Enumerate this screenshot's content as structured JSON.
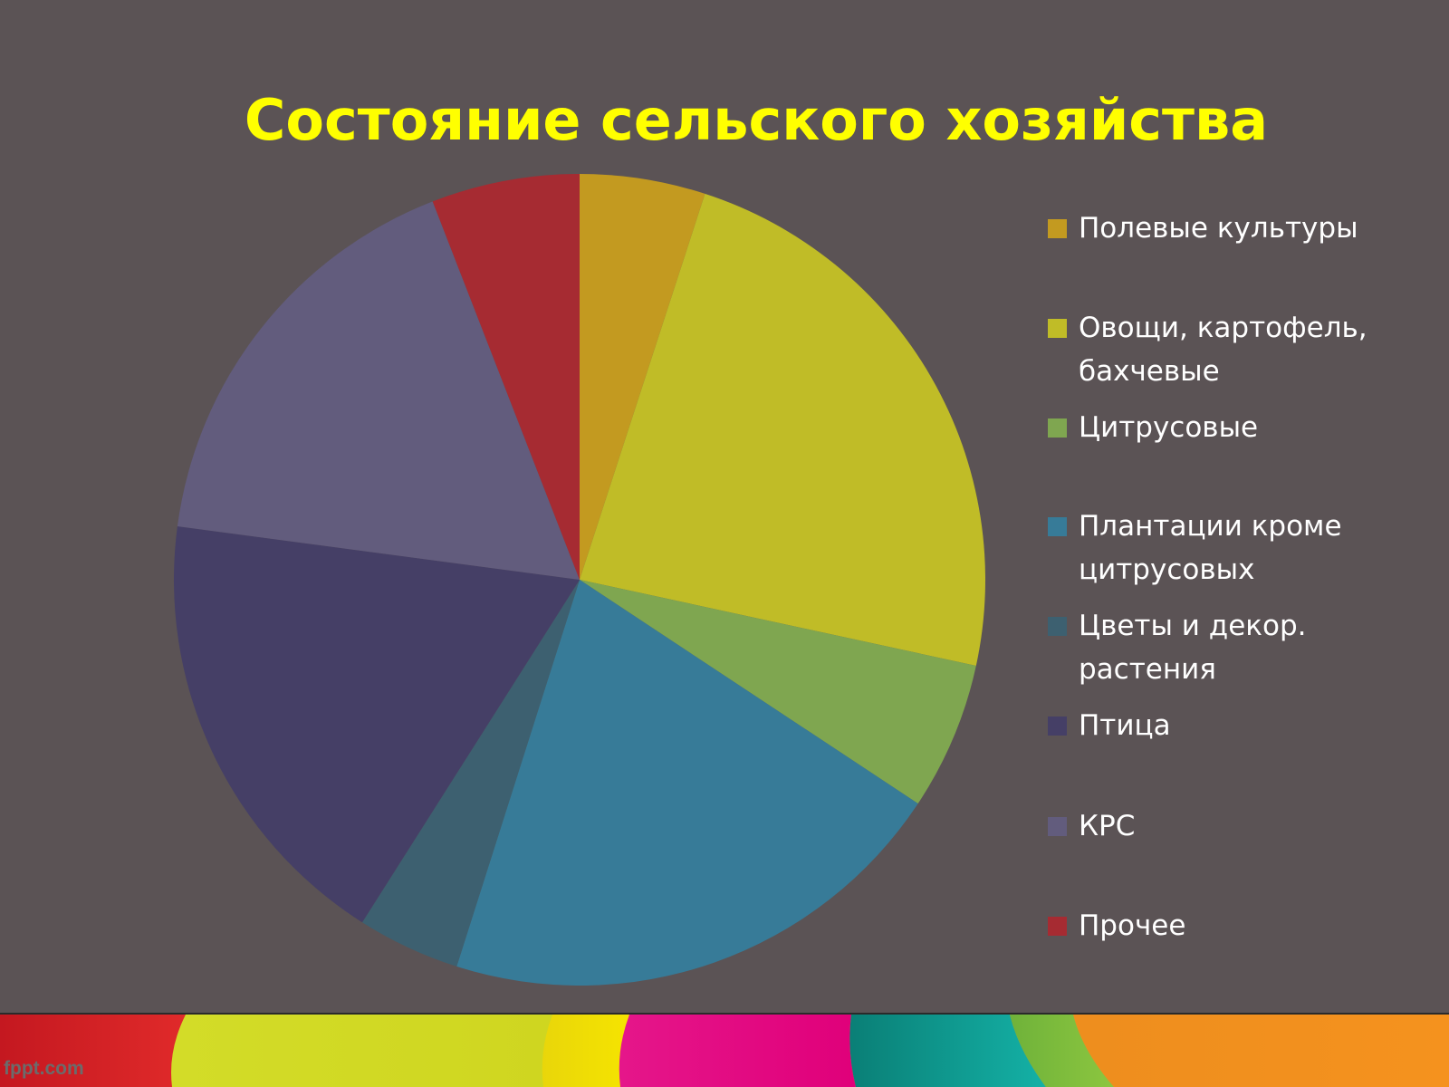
{
  "slide": {
    "watermark": "fppt.com"
  },
  "chart_data": {
    "type": "pie",
    "title": "Состояние сельского хозяйства",
    "legend_position": "right",
    "slices": [
      {
        "label": "Полевые культуры",
        "value": 5.0,
        "color": "#c39a20"
      },
      {
        "label": "Овощи, картофель, бахчевые",
        "value": 23.4,
        "color": "#c0bc27"
      },
      {
        "label": "Цитрусовые",
        "value": 5.9,
        "color": "#7fa650"
      },
      {
        "label": "Плантации кроме цитрусовых",
        "value": 20.6,
        "color": "#377b98"
      },
      {
        "label": "Цветы и декор. растения",
        "value": 4.1,
        "color": "#3d6070"
      },
      {
        "label": "Птица",
        "value": 18.1,
        "color": "#453f66"
      },
      {
        "label": "КРС",
        "value": 17.0,
        "color": "#625c7d"
      },
      {
        "label": "Прочее",
        "value": 5.9,
        "color": "#a62b32"
      }
    ]
  }
}
